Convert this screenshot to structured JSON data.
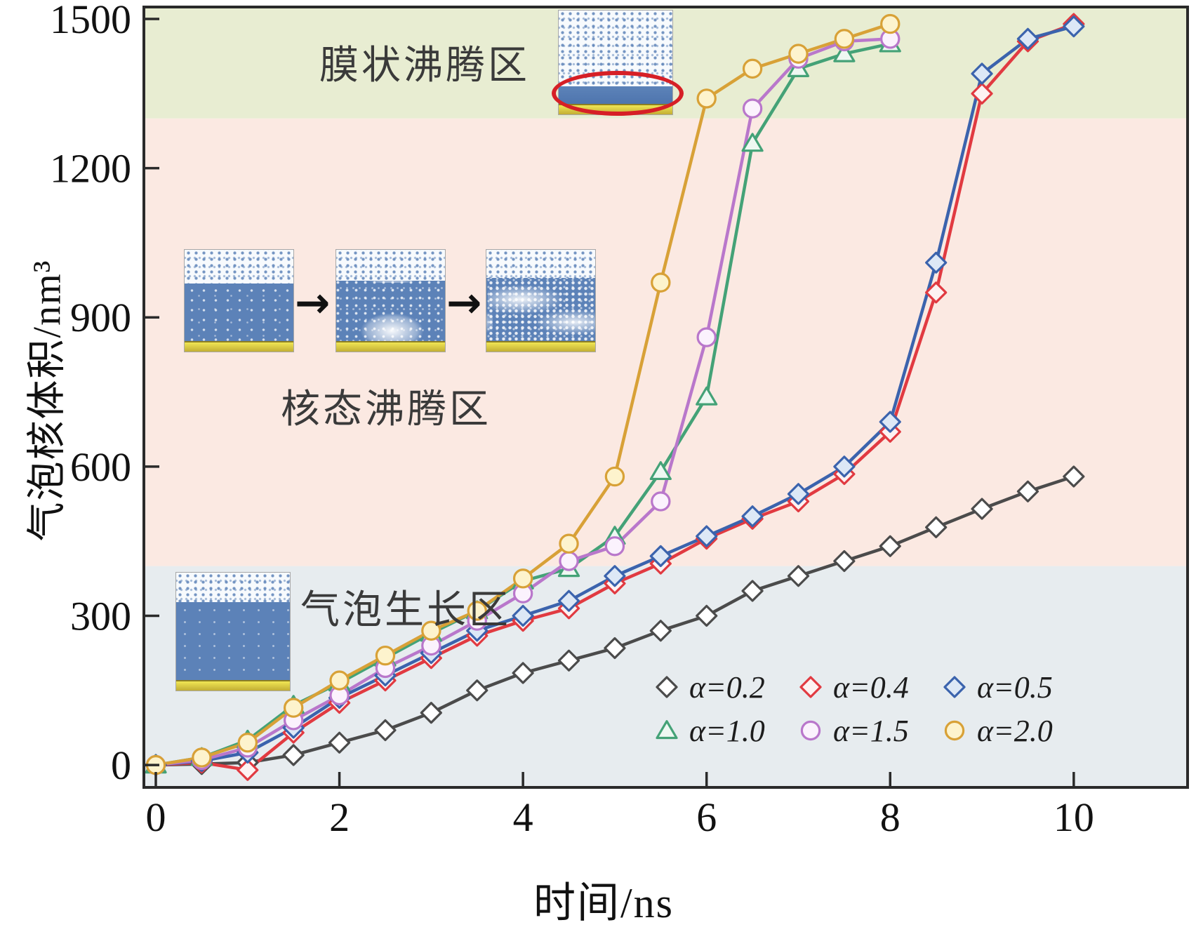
{
  "figure": {
    "ylabel": "气泡核体积/nm³",
    "xlabel": "时间/ns"
  },
  "regions": {
    "film_boiling_label": "膜状沸腾区",
    "nucleate_boiling_label": "核态沸腾区",
    "bubble_growth_label": "气泡生长区"
  },
  "arrow_glyph": "→",
  "insets": {
    "top": "film-boiling-snapshot",
    "middle_1": "nucleate-boiling-snapshot-1",
    "middle_2": "nucleate-boiling-snapshot-2",
    "middle_3": "nucleate-boiling-snapshot-3",
    "bottom": "bubble-growth-snapshot"
  },
  "chart_data": {
    "type": "line",
    "title": "",
    "xlabel": "时间/ns",
    "ylabel": "气泡核体积/nm³",
    "x_ticks": [
      0,
      2,
      4,
      6,
      8,
      10
    ],
    "y_ticks": [
      0,
      300,
      600,
      900,
      1200,
      1500
    ],
    "xlim": [
      -0.13,
      11.24
    ],
    "ylim": [
      -45,
      1524
    ],
    "x_step": 0.5,
    "grid": false,
    "legend_position": "lower right",
    "bands": [
      {
        "name": "气泡生长区",
        "from": -45,
        "to": 400,
        "color": "#e7ecef"
      },
      {
        "name": "核态沸腾区",
        "from": 400,
        "to": 1300,
        "color": "#fbe9e2"
      },
      {
        "name": "膜状沸腾区",
        "from": 1300,
        "to": 1524,
        "color": "#e8edd2"
      }
    ],
    "series": [
      {
        "label": "α=0.2",
        "marker": "diamond",
        "color": "#4b4b4b",
        "fill": "#ffffff",
        "values": [
          0,
          2,
          5,
          20,
          45,
          70,
          105,
          150,
          185,
          210,
          235,
          270,
          300,
          350,
          380,
          410,
          440,
          478,
          515,
          550,
          580
        ]
      },
      {
        "label": "α=0.4",
        "marker": "diamond",
        "color": "#e13a41",
        "fill": "#fdf2f2",
        "values": [
          0,
          5,
          -10,
          65,
          125,
          170,
          215,
          260,
          290,
          315,
          365,
          405,
          455,
          495,
          530,
          585,
          670,
          950,
          1350,
          1455,
          1490
        ]
      },
      {
        "label": "α=0.5",
        "marker": "diamond",
        "color": "#3b63ad",
        "fill": "#dde8f6",
        "values": [
          0,
          8,
          25,
          75,
          135,
          180,
          225,
          270,
          300,
          330,
          380,
          420,
          460,
          500,
          545,
          600,
          690,
          1010,
          1390,
          1460,
          1485
        ]
      },
      {
        "label": "α=1.0",
        "marker": "triangle",
        "color": "#44a277",
        "fill": "#eef8f2",
        "values": [
          0,
          15,
          50,
          120,
          165,
          215,
          265,
          310,
          370,
          395,
          460,
          590,
          740,
          1250,
          1400,
          1430,
          1450
        ]
      },
      {
        "label": "α=1.5",
        "marker": "circle",
        "color": "#b977cb",
        "fill": "#fbf2fd",
        "values": [
          0,
          10,
          35,
          90,
          140,
          195,
          240,
          290,
          345,
          410,
          440,
          530,
          860,
          1320,
          1420,
          1455,
          1460
        ]
      },
      {
        "label": "α=2.0",
        "marker": "circle",
        "color": "#d8a137",
        "fill": "#fdf3cd",
        "values": [
          0,
          15,
          45,
          115,
          170,
          220,
          270,
          310,
          375,
          445,
          580,
          970,
          1340,
          1400,
          1430,
          1460,
          1490
        ]
      }
    ]
  }
}
